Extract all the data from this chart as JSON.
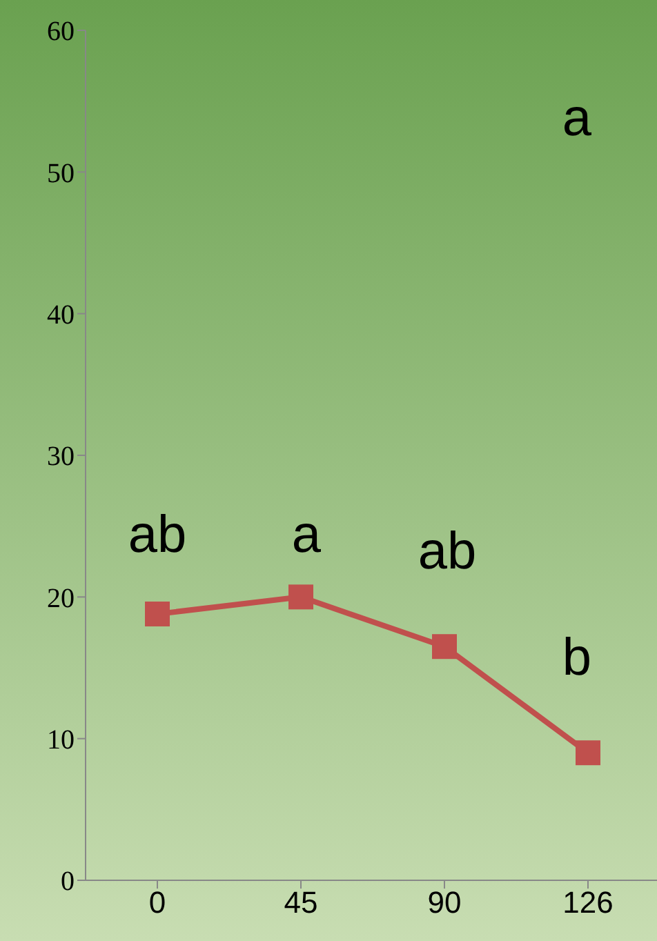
{
  "chart_data": {
    "type": "line",
    "categories": [
      "0",
      "45",
      "90",
      "126"
    ],
    "series": [
      {
        "color": "#c0504d",
        "values": [
          18.8,
          20.0,
          16.5,
          9.0
        ]
      }
    ],
    "ylim": [
      0,
      60
    ],
    "yticks": [
      0,
      10,
      20,
      30,
      40,
      50,
      60
    ],
    "grid": false,
    "legend": false,
    "marker": "square",
    "line_style": "solid",
    "annotations": [
      "ab",
      "a",
      "ab",
      "b",
      "a"
    ]
  }
}
